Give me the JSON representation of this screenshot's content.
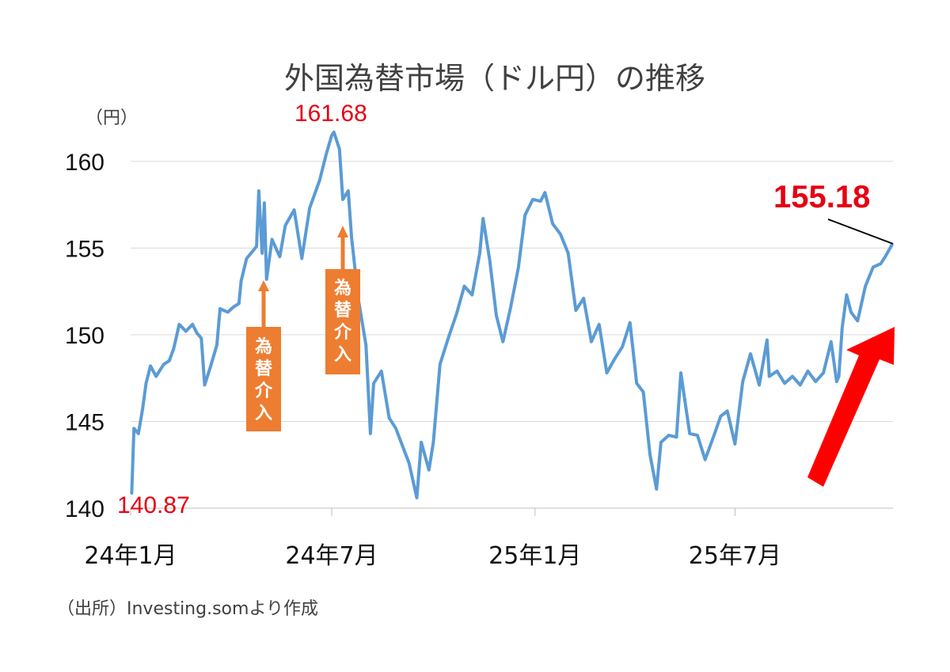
{
  "chart_data": {
    "type": "line",
    "title": "外国為替市場（ドル円）の推移",
    "unit_label": "（円）",
    "source": "（出所）Investing.somより作成",
    "yticks": [
      "140",
      "145",
      "150",
      "155",
      "160"
    ],
    "ylim": [
      140,
      162
    ],
    "xticks": [
      "24年1月",
      "24年7月",
      "25年1月",
      "25年7月"
    ],
    "xtick_dates": [
      "2024-01-01",
      "2024-07-01",
      "2025-01-01",
      "2025-07-01"
    ],
    "xlim": [
      "2024-01-01",
      "2025-11-21"
    ],
    "grid": "horizontal",
    "series": [
      {
        "color": "#5b9bd5",
        "x": [
          "2024-01-02",
          "2024-01-04",
          "2024-01-08",
          "2024-01-12",
          "2024-01-15",
          "2024-01-19",
          "2024-01-24",
          "2024-01-31",
          "2024-02-05",
          "2024-02-09",
          "2024-02-14",
          "2024-02-20",
          "2024-02-26",
          "2024-03-01",
          "2024-03-05",
          "2024-03-08",
          "2024-03-13",
          "2024-03-19",
          "2024-03-22",
          "2024-03-29",
          "2024-04-03",
          "2024-04-08",
          "2024-04-10",
          "2024-04-15",
          "2024-04-19",
          "2024-04-24",
          "2024-04-26",
          "2024-04-29",
          "2024-05-01",
          "2024-05-03",
          "2024-05-08",
          "2024-05-15",
          "2024-05-20",
          "2024-05-28",
          "2024-06-04",
          "2024-06-11",
          "2024-06-20",
          "2024-06-26",
          "2024-07-01",
          "2024-07-03",
          "2024-07-08",
          "2024-07-11",
          "2024-07-16",
          "2024-07-19",
          "2024-07-25",
          "2024-08-01",
          "2024-08-05",
          "2024-08-08",
          "2024-08-15",
          "2024-08-22",
          "2024-08-28",
          "2024-09-03",
          "2024-09-09",
          "2024-09-16",
          "2024-09-20",
          "2024-09-27",
          "2024-10-01",
          "2024-10-07",
          "2024-10-15",
          "2024-10-22",
          "2024-10-29",
          "2024-11-05",
          "2024-11-12",
          "2024-11-15",
          "2024-11-21",
          "2024-11-27",
          "2024-12-03",
          "2024-12-10",
          "2024-12-17",
          "2024-12-23",
          "2024-12-30",
          "2025-01-06",
          "2025-01-10",
          "2025-01-17",
          "2025-01-24",
          "2025-01-31",
          "2025-02-07",
          "2025-02-14",
          "2025-02-21",
          "2025-02-28",
          "2025-03-07",
          "2025-03-14",
          "2025-03-21",
          "2025-03-28",
          "2025-04-03",
          "2025-04-09",
          "2025-04-15",
          "2025-04-21",
          "2025-04-25",
          "2025-05-02",
          "2025-05-09",
          "2025-05-13",
          "2025-05-21",
          "2025-05-28",
          "2025-06-04",
          "2025-06-12",
          "2025-06-18",
          "2025-06-24",
          "2025-07-01",
          "2025-07-08",
          "2025-07-15",
          "2025-07-23",
          "2025-07-30",
          "2025-08-01",
          "2025-08-08",
          "2025-08-15",
          "2025-08-22",
          "2025-08-29",
          "2025-09-05",
          "2025-09-12",
          "2025-09-19",
          "2025-09-26",
          "2025-10-01",
          "2025-10-03",
          "2025-10-06",
          "2025-10-10",
          "2025-10-14",
          "2025-10-20",
          "2025-10-27",
          "2025-11-03",
          "2025-11-10",
          "2025-11-14",
          "2025-11-20"
        ],
        "values": [
          140.87,
          144.6,
          144.3,
          145.8,
          147.2,
          148.2,
          147.6,
          148.3,
          148.5,
          149.2,
          150.6,
          150.2,
          150.6,
          150.1,
          149.8,
          147.1,
          148.1,
          149.4,
          151.5,
          151.3,
          151.6,
          151.8,
          153.1,
          154.4,
          154.7,
          155.1,
          158.3,
          154.7,
          157.6,
          153.2,
          155.5,
          154.5,
          156.3,
          157.2,
          154.4,
          157.3,
          158.9,
          160.4,
          161.5,
          161.68,
          160.7,
          157.8,
          158.3,
          155.6,
          152.1,
          149.4,
          144.3,
          147.2,
          147.9,
          145.2,
          144.6,
          143.6,
          142.6,
          140.6,
          143.8,
          142.2,
          143.8,
          148.3,
          149.9,
          151.2,
          152.8,
          152.3,
          154.7,
          156.7,
          154.3,
          151.1,
          149.6,
          151.6,
          153.9,
          156.9,
          157.8,
          157.7,
          158.2,
          156.4,
          155.8,
          154.7,
          151.4,
          152.1,
          149.6,
          150.6,
          147.8,
          148.6,
          149.3,
          150.7,
          147.2,
          146.7,
          143.1,
          141.1,
          143.8,
          144.2,
          144.1,
          147.8,
          144.3,
          144.2,
          142.8,
          144.2,
          145.3,
          145.6,
          143.7,
          147.3,
          148.9,
          147.1,
          149.7,
          147.6,
          147.9,
          147.2,
          147.6,
          147.1,
          147.9,
          147.3,
          147.8,
          149.6,
          147.3,
          147.6,
          150.4,
          152.3,
          151.3,
          150.8,
          152.8,
          153.9,
          154.1,
          154.5,
          155.18
        ]
      }
    ],
    "annotations": {
      "start_value": "140.87",
      "peak_value": "161.68",
      "latest_value": "155.18",
      "intervention_label": "為替介入",
      "intervention_chars": [
        "為",
        "替",
        "介",
        "入"
      ],
      "intervention_box_color": "#ed7d31",
      "highlight_arrow_color": "#ff0000"
    }
  }
}
